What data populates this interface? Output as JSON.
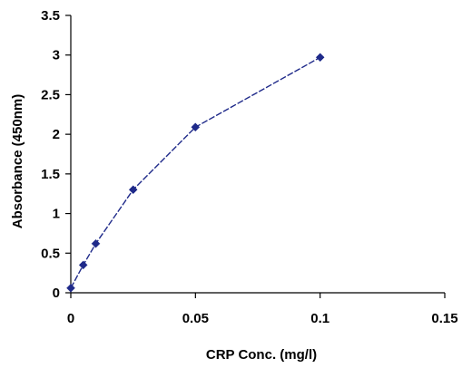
{
  "chart_data": {
    "type": "line",
    "title": "",
    "xlabel": "CRP Conc. (mg/l)",
    "ylabel": "Absorbance (450nm)",
    "xlim": [
      0,
      0.15
    ],
    "ylim": [
      0,
      3.5
    ],
    "xticks": [
      "0",
      "0.05",
      "0.1",
      "0.15"
    ],
    "yticks": [
      "0",
      "0.5",
      "1",
      "1.5",
      "2",
      "2.5",
      "3",
      "3.5"
    ],
    "grid": false,
    "legend": "none",
    "series": [
      {
        "color": "#1f2a8a",
        "marker": "diamond",
        "line_style": "dashed",
        "x": [
          0,
          0.005,
          0.01,
          0.025,
          0.05,
          0.1
        ],
        "y": [
          0.06,
          0.35,
          0.62,
          1.3,
          2.09,
          2.97
        ]
      }
    ]
  }
}
